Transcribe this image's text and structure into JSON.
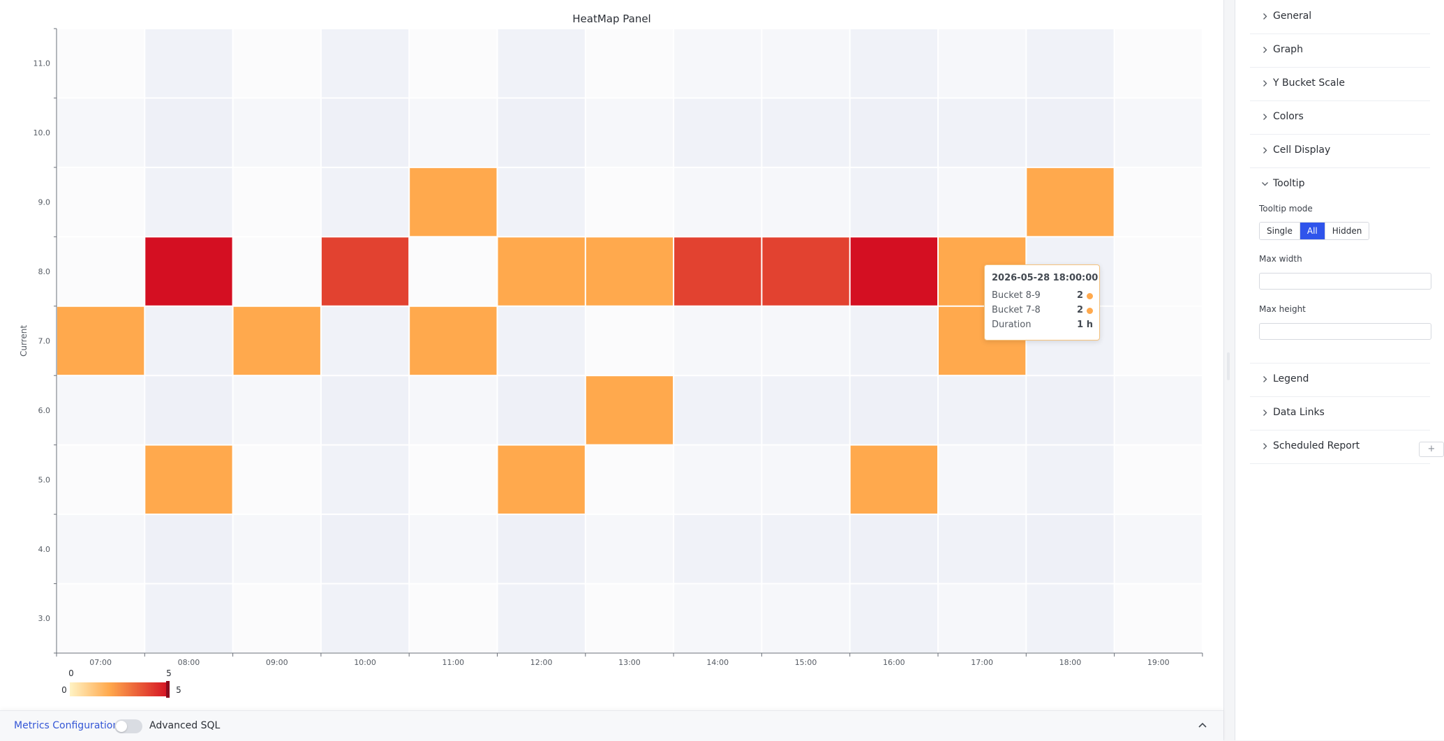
{
  "chart": {
    "title": "HeatMap Panel",
    "ylabel": "Current"
  },
  "chart_data": {
    "type": "heatmap",
    "title": "HeatMap Panel",
    "ylabel": "Current",
    "x": [
      "07:00",
      "08:00",
      "09:00",
      "10:00",
      "11:00",
      "12:00",
      "13:00",
      "14:00",
      "15:00",
      "16:00",
      "17:00",
      "18:00",
      "19:00"
    ],
    "y": [
      "3.0",
      "4.0",
      "5.0",
      "6.0",
      "7.0",
      "8.0",
      "9.0",
      "10.0",
      "11.0"
    ],
    "cells": [
      {
        "x": "07:00",
        "y": "7.0",
        "value": 2
      },
      {
        "x": "08:00",
        "y": "8.0",
        "value": 5
      },
      {
        "x": "08:00",
        "y": "5.0",
        "value": 2
      },
      {
        "x": "09:00",
        "y": "7.0",
        "value": 2
      },
      {
        "x": "10:00",
        "y": "8.0",
        "value": 4
      },
      {
        "x": "11:00",
        "y": "9.0",
        "value": 2
      },
      {
        "x": "11:00",
        "y": "7.0",
        "value": 2
      },
      {
        "x": "12:00",
        "y": "8.0",
        "value": 2
      },
      {
        "x": "12:00",
        "y": "5.0",
        "value": 2
      },
      {
        "x": "13:00",
        "y": "8.0",
        "value": 2
      },
      {
        "x": "13:00",
        "y": "6.0",
        "value": 2
      },
      {
        "x": "14:00",
        "y": "8.0",
        "value": 4
      },
      {
        "x": "15:00",
        "y": "8.0",
        "value": 4
      },
      {
        "x": "16:00",
        "y": "8.0",
        "value": 5
      },
      {
        "x": "16:00",
        "y": "5.0",
        "value": 2
      },
      {
        "x": "17:00",
        "y": "8.0",
        "value": 2
      },
      {
        "x": "17:00",
        "y": "7.0",
        "value": 2
      },
      {
        "x": "18:00",
        "y": "9.0",
        "value": 2
      }
    ],
    "color_scale": {
      "min": 0,
      "max": 5,
      "colors": [
        "#fff3c4",
        "#ffa94d",
        "#d40f22"
      ]
    },
    "legend": {
      "min_label": "0",
      "max_label": "5",
      "left_label": "0",
      "right_label": "5",
      "placement": "bottom-left"
    },
    "empty_cell_colors": {
      "light": "#fbfbfc",
      "mid": "#f6f7fa",
      "dark": "#f0f2f8"
    }
  },
  "tooltip": {
    "title": "2026-05-28 18:00:00",
    "rows": [
      {
        "label": "Bucket 8-9",
        "value": "2",
        "color": "#ffa94d"
      },
      {
        "label": "Bucket 7-8",
        "value": "2",
        "color": "#ffa94d"
      },
      {
        "label": "Duration",
        "value": "1 h"
      }
    ]
  },
  "bottom_bar": {
    "metrics_link": "Metrics Configuration",
    "advanced_sql": "Advanced SQL",
    "advanced_sql_enabled": false
  },
  "sidebar": {
    "sections": [
      {
        "title": "General",
        "expanded": false
      },
      {
        "title": "Graph",
        "expanded": false
      },
      {
        "title": "Y Bucket Scale",
        "expanded": false
      },
      {
        "title": "Colors",
        "expanded": false
      },
      {
        "title": "Cell Display",
        "expanded": false
      },
      {
        "title": "Tooltip",
        "expanded": true
      },
      {
        "title": "Legend",
        "expanded": false
      },
      {
        "title": "Data Links",
        "expanded": false
      },
      {
        "title": "Scheduled Report",
        "expanded": false
      }
    ],
    "tooltip": {
      "mode_label": "Tooltip mode",
      "modes": [
        "Single",
        "All",
        "Hidden"
      ],
      "selected_mode": "All",
      "max_width_label": "Max width",
      "max_width_value": "",
      "max_height_label": "Max height",
      "max_height_value": ""
    },
    "add_button_label": "+"
  }
}
